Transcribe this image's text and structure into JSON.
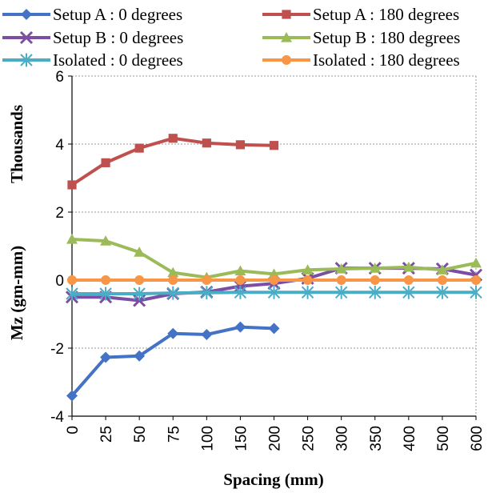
{
  "chart_data": {
    "type": "line",
    "categories": [
      "0",
      "25",
      "50",
      "75",
      "100",
      "150",
      "200",
      "250",
      "300",
      "350",
      "400",
      "500",
      "600"
    ],
    "xlabel": "Spacing (mm)",
    "ylabel": "Mz (gm-mm)",
    "ylabel_units": "Thousands",
    "ylim": [
      -4,
      6
    ],
    "yticks": [
      "-4",
      "-2",
      "0",
      "2",
      "4",
      "6"
    ],
    "grid": "horizontal dotted",
    "legend_position": "top",
    "series": [
      {
        "name": "Setup A : 0 degrees",
        "color": "#4472C4",
        "marker": "diamond",
        "values": [
          -3.4,
          -2.27,
          -2.23,
          -1.57,
          -1.6,
          -1.38,
          -1.42,
          null,
          null,
          null,
          null,
          null,
          null
        ]
      },
      {
        "name": "Setup A : 180 degrees",
        "color": "#C0504D",
        "marker": "square",
        "values": [
          2.8,
          3.45,
          3.88,
          4.17,
          4.03,
          3.98,
          3.96,
          null,
          null,
          null,
          null,
          null,
          null
        ]
      },
      {
        "name": "Setup B : 0 degrees",
        "color": "#7B4EA3",
        "marker": "x",
        "values": [
          -0.5,
          -0.5,
          -0.6,
          -0.4,
          -0.35,
          -0.18,
          -0.1,
          0.05,
          0.35,
          0.35,
          0.35,
          0.33,
          0.15
        ]
      },
      {
        "name": "Setup B : 180 degrees",
        "color": "#9BBB59",
        "marker": "triangle",
        "values": [
          1.2,
          1.15,
          0.82,
          0.22,
          0.08,
          0.27,
          0.18,
          0.3,
          0.33,
          0.35,
          0.38,
          0.3,
          0.5
        ]
      },
      {
        "name": "Isolated : 0 degrees",
        "color": "#4BACC6",
        "marker": "asterisk",
        "values": [
          -0.4,
          -0.4,
          -0.4,
          -0.38,
          -0.37,
          -0.36,
          -0.36,
          -0.36,
          -0.36,
          -0.36,
          -0.36,
          -0.36,
          -0.36
        ]
      },
      {
        "name": "Isolated : 180 degrees",
        "color": "#F79646",
        "marker": "circle",
        "values": [
          0.0,
          0.0,
          0.0,
          0.0,
          0.0,
          0.0,
          0.0,
          0.0,
          0.0,
          0.0,
          0.0,
          0.0,
          0.0
        ]
      }
    ]
  }
}
